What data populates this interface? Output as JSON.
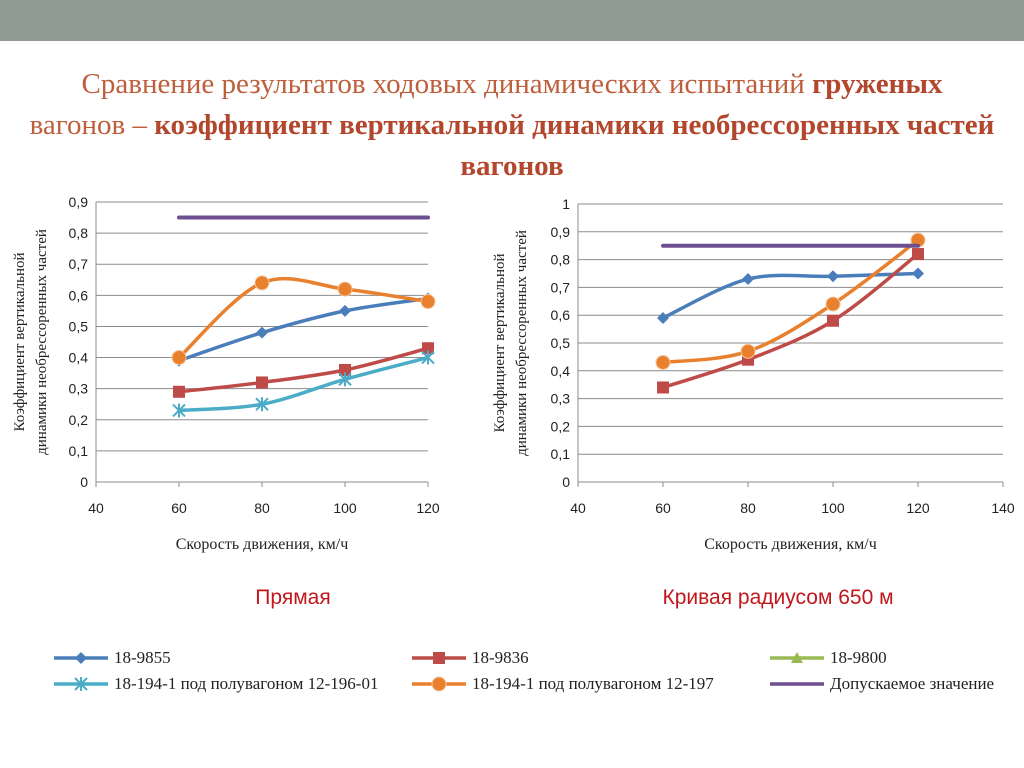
{
  "title": {
    "part1": "Сравнение результатов ходовых динамических испытаний ",
    "bold1": "груженых",
    "part2": "вагонов – ",
    "bold2": "коэффициент вертикальной динамики необрессоренных частей вагонов"
  },
  "chart_data": [
    {
      "type": "line",
      "caption": "Прямая",
      "xlabel": "Скорость движения, км/ч",
      "ylabel": "Коэффициент вертикальной динамики необрессоренных частей",
      "xlim": [
        40,
        120
      ],
      "ylim": [
        0,
        0.9
      ],
      "xticks": [
        "40",
        "60",
        "80",
        "100",
        "120"
      ],
      "yticks": [
        "0",
        "0,1",
        "0,2",
        "0,3",
        "0,4",
        "0,5",
        "0,6",
        "0,7",
        "0,8",
        "0,9"
      ],
      "grid": "horizontal",
      "series": [
        {
          "name": "18-9855",
          "color": "#4a7ebb",
          "marker": "diamond",
          "x": [
            60,
            80,
            100,
            120
          ],
          "y": [
            0.39,
            0.48,
            0.55,
            0.59
          ]
        },
        {
          "name": "18-9836",
          "color": "#be4b48",
          "marker": "square",
          "x": [
            60,
            80,
            100,
            120
          ],
          "y": [
            0.29,
            0.32,
            0.36,
            0.43
          ]
        },
        {
          "name": "18-194-1 под полувагоном 12-196-01",
          "color": "#4aacc6",
          "marker": "star",
          "x": [
            60,
            80,
            100,
            120
          ],
          "y": [
            0.23,
            0.25,
            0.33,
            0.4
          ]
        },
        {
          "name": "18-194-1 под полувагоном 12-197",
          "color": "#e8802e",
          "marker": "circle",
          "x": [
            60,
            80,
            100,
            120
          ],
          "y": [
            0.4,
            0.64,
            0.62,
            0.58
          ]
        },
        {
          "name": "Допускаемое значение",
          "color": "#6f4f8f",
          "marker": "none",
          "x": [
            60,
            120
          ],
          "y": [
            0.85,
            0.85
          ]
        }
      ]
    },
    {
      "type": "line",
      "caption": "Кривая радиусом 650 м",
      "xlabel": "Скорость движения, км/ч",
      "ylabel": "Коэффициент вертикальной динамики необрессоренных частей",
      "xlim": [
        40,
        140
      ],
      "ylim": [
        0,
        1
      ],
      "xticks": [
        "40",
        "60",
        "80",
        "100",
        "120",
        "140"
      ],
      "yticks": [
        "0",
        "0,1",
        "0,2",
        "0,3",
        "0,4",
        "0,5",
        "0,6",
        "0,7",
        "0,8",
        "0,9",
        "1"
      ],
      "grid": "horizontal",
      "series": [
        {
          "name": "18-9855",
          "color": "#4a7ebb",
          "marker": "diamond",
          "x": [
            60,
            80,
            100,
            120
          ],
          "y": [
            0.59,
            0.73,
            0.74,
            0.75
          ]
        },
        {
          "name": "18-9836",
          "color": "#be4b48",
          "marker": "square",
          "x": [
            60,
            80,
            100,
            120
          ],
          "y": [
            0.34,
            0.44,
            0.58,
            0.82
          ]
        },
        {
          "name": "18-194-1 под полувагоном 12-197",
          "color": "#e8802e",
          "marker": "circle",
          "x": [
            60,
            80,
            100,
            120
          ],
          "y": [
            0.43,
            0.47,
            0.64,
            0.87
          ]
        },
        {
          "name": "Допускаемое значение",
          "color": "#6f4f8f",
          "marker": "none",
          "x": [
            60,
            120
          ],
          "y": [
            0.85,
            0.85
          ]
        }
      ]
    }
  ],
  "legend": [
    {
      "label": "18-9855",
      "color": "#4a7ebb",
      "marker": "diamond"
    },
    {
      "label": "18-9836",
      "color": "#be4b48",
      "marker": "square"
    },
    {
      "label": "18-9800",
      "color": "#98b954",
      "marker": "triangle"
    },
    {
      "label": "18-194-1 под полувагоном 12-196-01",
      "color": "#4aacc6",
      "marker": "star"
    },
    {
      "label": "18-194-1 под полувагоном 12-197",
      "color": "#e8802e",
      "marker": "circle"
    },
    {
      "label": "Допускаемое значение",
      "color": "#6f4f8f",
      "marker": "none"
    }
  ]
}
